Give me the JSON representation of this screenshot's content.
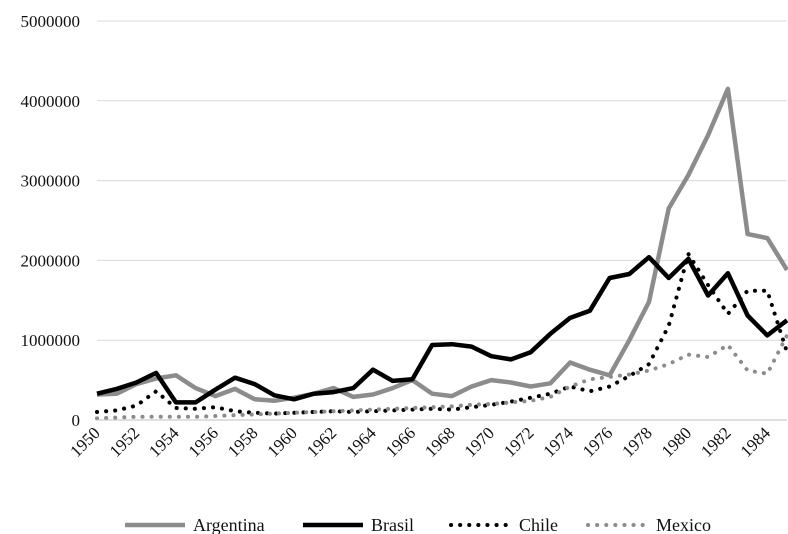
{
  "chart_data": {
    "type": "line",
    "title": "",
    "xlabel": "",
    "ylabel": "",
    "x": [
      1950,
      1951,
      1952,
      1953,
      1954,
      1955,
      1956,
      1957,
      1958,
      1959,
      1960,
      1961,
      1962,
      1963,
      1964,
      1965,
      1966,
      1967,
      1968,
      1969,
      1970,
      1971,
      1972,
      1973,
      1974,
      1975,
      1976,
      1977,
      1978,
      1979,
      1980,
      1981,
      1982,
      1983,
      1984,
      1985
    ],
    "x_tick_labels": [
      "1950",
      "1952",
      "1954",
      "1956",
      "1958",
      "1960",
      "1962",
      "1964",
      "1966",
      "1968",
      "1970",
      "1972",
      "1974",
      "1976",
      "1978",
      "1980",
      "1982",
      "1984"
    ],
    "y_tick_labels": [
      "0",
      "1000000",
      "2000000",
      "3000000",
      "4000000",
      "5000000"
    ],
    "ylim": [
      0,
      5000000
    ],
    "grid": "y-major",
    "legend_position": "bottom",
    "series": [
      {
        "name": "Argentina",
        "color": "#8c8c8c",
        "style": "solid",
        "values": [
          320000,
          330000,
          450000,
          520000,
          560000,
          400000,
          300000,
          390000,
          260000,
          240000,
          280000,
          330000,
          400000,
          290000,
          320000,
          400000,
          500000,
          330000,
          300000,
          420000,
          500000,
          470000,
          420000,
          460000,
          720000,
          630000,
          560000,
          1000000,
          1480000,
          2650000,
          3070000,
          3570000,
          4150000,
          2330000,
          2280000,
          1880000
        ]
      },
      {
        "name": "Brasil",
        "color": "#000000",
        "style": "solid",
        "values": [
          330000,
          390000,
          470000,
          590000,
          220000,
          220000,
          380000,
          530000,
          450000,
          310000,
          260000,
          330000,
          350000,
          400000,
          630000,
          490000,
          510000,
          940000,
          950000,
          920000,
          800000,
          760000,
          850000,
          1080000,
          1280000,
          1370000,
          1780000,
          1830000,
          2040000,
          1780000,
          2020000,
          1560000,
          1840000,
          1310000,
          1060000,
          1250000
        ]
      },
      {
        "name": "Chile",
        "color": "#000000",
        "style": "dotted",
        "values": [
          100000,
          120000,
          180000,
          360000,
          150000,
          140000,
          160000,
          110000,
          90000,
          80000,
          90000,
          100000,
          110000,
          100000,
          110000,
          120000,
          130000,
          140000,
          130000,
          160000,
          190000,
          230000,
          280000,
          330000,
          420000,
          360000,
          420000,
          550000,
          700000,
          1180000,
          2080000,
          1690000,
          1330000,
          1620000,
          1620000,
          850000
        ]
      },
      {
        "name": "Mexico",
        "color": "#8c8c8c",
        "style": "dotted",
        "values": [
          20000,
          30000,
          40000,
          40000,
          40000,
          40000,
          50000,
          60000,
          70000,
          80000,
          90000,
          100000,
          110000,
          120000,
          130000,
          140000,
          150000,
          160000,
          170000,
          190000,
          200000,
          220000,
          240000,
          290000,
          420000,
          510000,
          540000,
          570000,
          620000,
          700000,
          820000,
          790000,
          940000,
          620000,
          580000,
          1060000
        ]
      }
    ]
  }
}
